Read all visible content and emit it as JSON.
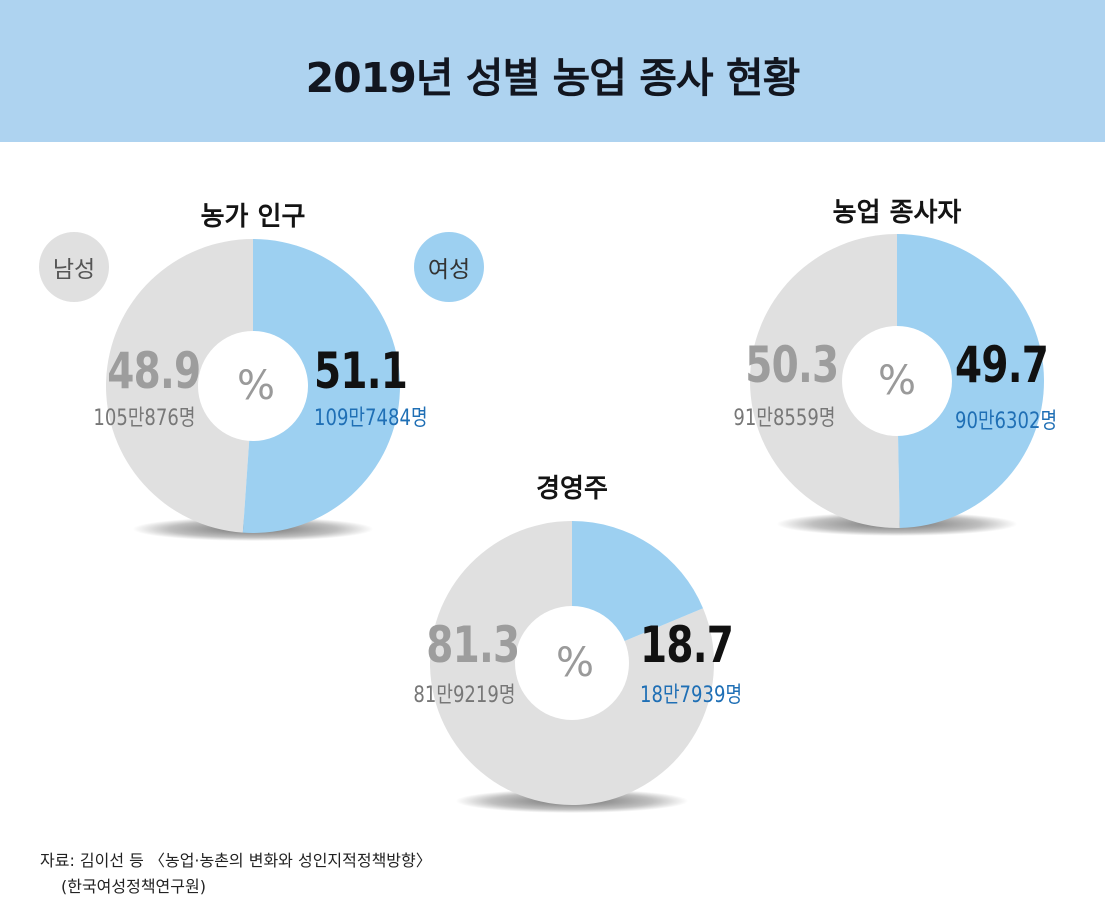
{
  "title": "2019년 성별 농업 종사 현황",
  "legend": {
    "male": "남성",
    "female": "여성"
  },
  "percent_sign": "%",
  "colors": {
    "male": "#e0e0e0",
    "female": "#9dd0f1",
    "banner": "#aed3f0",
    "female_text": "#1f6fb5"
  },
  "chart_data": [
    {
      "type": "pie",
      "title": "농가 인구",
      "categories": [
        "남성",
        "여성"
      ],
      "values": [
        48.9,
        51.1
      ],
      "value_labels": [
        "48.9",
        "51.1"
      ],
      "count_labels": [
        "105만876명",
        "109만7484명"
      ]
    },
    {
      "type": "pie",
      "title": "농업 종사자",
      "categories": [
        "남성",
        "여성"
      ],
      "values": [
        50.3,
        49.7
      ],
      "value_labels": [
        "50.3",
        "49.7"
      ],
      "count_labels": [
        "91만8559명",
        "90만6302명"
      ]
    },
    {
      "type": "pie",
      "title": "경영주",
      "categories": [
        "남성",
        "여성"
      ],
      "values": [
        81.3,
        18.7
      ],
      "value_labels": [
        "81.3",
        "18.7"
      ],
      "count_labels": [
        "81만9219명",
        "18만7939명"
      ]
    }
  ],
  "source": {
    "line1": "자료: 김이선 등 〈농업·농촌의 변화와 성인지적정책방향〉",
    "line2": "(한국여성정책연구원)"
  }
}
